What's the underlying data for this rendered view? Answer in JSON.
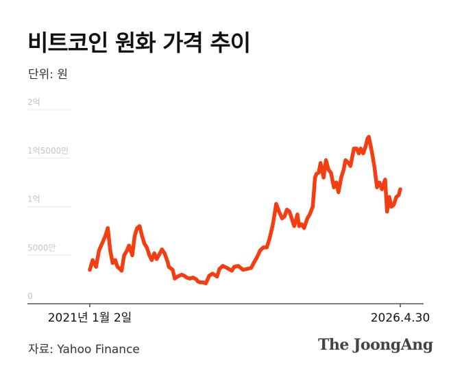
{
  "chart_data": {
    "type": "line",
    "title": "비트코인 원화 가격 추이",
    "unit_label": "단위: 원",
    "source": "자료: Yahoo Finance",
    "brand": "The JoongAng",
    "x_start_label": "2021년 1월 2일",
    "x_end_label": "2026.4.30",
    "x_tick_labels": [
      "2021년 1월 2일",
      "2026.4.30"
    ],
    "y_tick_labels": [
      "0",
      "5000만",
      "1억",
      "1억5000만",
      "2억"
    ],
    "ylim": [
      0,
      200000000
    ],
    "grid": true,
    "line_color": "#f53d12",
    "series": [
      {
        "x": [
          "2021-01-02",
          "2021-01-20",
          "2021-02-10",
          "2021-03-01",
          "2021-03-20",
          "2021-04-10",
          "2021-04-25",
          "2021-05-10",
          "2021-05-25",
          "2021-06-10",
          "2021-06-25",
          "2021-07-10",
          "2021-07-20",
          "2021-08-05",
          "2021-08-20",
          "2021-09-05",
          "2021-09-25",
          "2021-10-10",
          "2021-10-25",
          "2021-11-10",
          "2021-11-25",
          "2021-12-10",
          "2021-12-25",
          "2022-01-10",
          "2022-01-25",
          "2022-02-10",
          "2022-02-25",
          "2022-03-10",
          "2022-03-30",
          "2022-04-15",
          "2022-05-05",
          "2022-05-12",
          "2022-06-05",
          "2022-06-18",
          "2022-07-05",
          "2022-08-01",
          "2022-08-15",
          "2022-09-01",
          "2022-09-20",
          "2022-10-10",
          "2022-11-01",
          "2022-11-10",
          "2022-11-25",
          "2022-12-15",
          "2022-12-30",
          "2023-01-20",
          "2023-02-10",
          "2023-03-01",
          "2023-03-10",
          "2023-03-25",
          "2023-04-15",
          "2023-05-10",
          "2023-06-10",
          "2023-06-25",
          "2023-07-20",
          "2023-08-20",
          "2023-09-15",
          "2023-10-10",
          "2023-10-25",
          "2023-11-15",
          "2023-12-05",
          "2023-12-25",
          "2024-01-15",
          "2024-02-01",
          "2024-02-20",
          "2024-03-05",
          "2024-03-14",
          "2024-04-01",
          "2024-04-20",
          "2024-05-05",
          "2024-05-20",
          "2024-06-05",
          "2024-06-25",
          "2024-07-05",
          "2024-07-25",
          "2024-08-05",
          "2024-08-20",
          "2024-09-05",
          "2024-09-25",
          "2024-10-10",
          "2024-10-29",
          "2024-11-12",
          "2024-11-22",
          "2024-12-05",
          "2024-12-17",
          "2025-01-05",
          "2025-01-20",
          "2025-02-05",
          "2025-02-20",
          "2025-03-10",
          "2025-03-25",
          "2025-04-08",
          "2025-04-25",
          "2025-05-10",
          "2025-05-22",
          "2025-06-10",
          "2025-06-22",
          "2025-07-14",
          "2025-07-30",
          "2025-08-14",
          "2025-08-25",
          "2025-09-10",
          "2025-09-25",
          "2025-10-06",
          "2025-10-15",
          "2025-10-30",
          "2025-11-10",
          "2025-11-20",
          "2025-12-05",
          "2025-12-20",
          "2026-01-05",
          "2026-01-25",
          "2026-02-06",
          "2026-02-20",
          "2026-03-05",
          "2026-03-20",
          "2026-04-05",
          "2026-04-20",
          "2026-04-30"
        ],
        "values": [
          35000000,
          45000000,
          38000000,
          55000000,
          62000000,
          70000000,
          78000000,
          55000000,
          42000000,
          45000000,
          38000000,
          36000000,
          34000000,
          50000000,
          54000000,
          60000000,
          50000000,
          70000000,
          78000000,
          80000000,
          70000000,
          62000000,
          58000000,
          50000000,
          45000000,
          52000000,
          46000000,
          50000000,
          56000000,
          52000000,
          43000000,
          38000000,
          35000000,
          26000000,
          28000000,
          30000000,
          29000000,
          27000000,
          26000000,
          27000000,
          25000000,
          23000000,
          22000000,
          22000000,
          21000000,
          29000000,
          31000000,
          29000000,
          28000000,
          36000000,
          39000000,
          37000000,
          34000000,
          38000000,
          39000000,
          35000000,
          36000000,
          37000000,
          42000000,
          48000000,
          55000000,
          58000000,
          58000000,
          67000000,
          80000000,
          93000000,
          103000000,
          95000000,
          88000000,
          90000000,
          97000000,
          95000000,
          85000000,
          80000000,
          92000000,
          80000000,
          82000000,
          78000000,
          88000000,
          92000000,
          100000000,
          130000000,
          134000000,
          135000000,
          145000000,
          130000000,
          148000000,
          138000000,
          135000000,
          120000000,
          125000000,
          115000000,
          130000000,
          138000000,
          148000000,
          145000000,
          142000000,
          160000000,
          160000000,
          155000000,
          160000000,
          155000000,
          162000000,
          170000000,
          172000000,
          160000000,
          150000000,
          140000000,
          120000000,
          125000000,
          118000000,
          128000000,
          95000000,
          110000000,
          100000000,
          102000000,
          110000000,
          112000000,
          118000000
        ]
      }
    ]
  }
}
